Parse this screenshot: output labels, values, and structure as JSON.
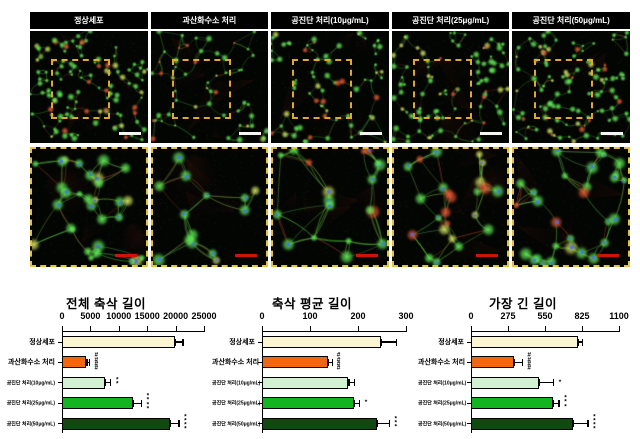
{
  "micrographs": {
    "panels": [
      {
        "label": "정상세포",
        "density": 1.0
      },
      {
        "label": "과산화수소 처리",
        "density": 0.48
      },
      {
        "label": "공진단 처리(10μg/mL)",
        "density": 0.62
      },
      {
        "label": "공진단 처리(25μg/mL)",
        "density": 0.8
      },
      {
        "label": "공진단 처리(50μg/mL)",
        "density": 0.95
      }
    ],
    "overview_scalebar_color": "#FFFFFF",
    "inset_scalebar_color": "#CC1505",
    "inset_box_color": "#E0A82E"
  },
  "chart_data": [
    {
      "type": "bar",
      "orientation": "horizontal",
      "title": "전체 축삭 길이",
      "categories": [
        "정상세포",
        "과산화수소 처리",
        "공진단 처리(10μg/mL)",
        "공진단 처리(25μg/mL)",
        "공진단 처리(50μg/mL)"
      ],
      "values": [
        19900,
        4300,
        7500,
        12500,
        19000
      ],
      "errors": [
        1300,
        500,
        1000,
        1400,
        1500
      ],
      "annotations": [
        "",
        "####",
        "**",
        "****",
        "****"
      ],
      "xlim": [
        0,
        25000
      ],
      "xticks": [
        0,
        5000,
        10000,
        15000,
        20000,
        25000
      ],
      "bar_colors": [
        "#FBF5D2",
        "#F2660F",
        "#D2F0D2",
        "#12B41F",
        "#114A11"
      ],
      "grid": false,
      "legend": false
    },
    {
      "type": "bar",
      "orientation": "horizontal",
      "title": "축삭 평균 길이",
      "categories": [
        "정상세포",
        "과산화수소 처리",
        "공진단 처리(10μg/mL)",
        "공진단 처리(25μg/mL)",
        "공진단 처리(50μg/mL)"
      ],
      "values": [
        247,
        137,
        180,
        192,
        239
      ],
      "errors": [
        32,
        8,
        12,
        10,
        25
      ],
      "annotations": [
        "",
        "####",
        "",
        "*",
        "***"
      ],
      "xlim": [
        0,
        300
      ],
      "xticks": [
        0,
        100,
        200,
        300
      ],
      "bar_colors": [
        "#FBF5D2",
        "#F2660F",
        "#D2F0D2",
        "#12B41F",
        "#114A11"
      ],
      "grid": false,
      "legend": false
    },
    {
      "type": "bar",
      "orientation": "horizontal",
      "title": "가장 긴 길이",
      "categories": [
        "정상세포",
        "과산화수소 처리",
        "공진단 처리(10μg/mL)",
        "공진단 처리(25μg/mL)",
        "공진단 처리(50μg/mL)"
      ],
      "values": [
        795,
        320,
        505,
        610,
        758
      ],
      "errors": [
        30,
        60,
        105,
        40,
        107
      ],
      "annotations": [
        "",
        "####",
        "*",
        "***",
        "****"
      ],
      "xlim": [
        0,
        1100
      ],
      "xticks": [
        0,
        275,
        550,
        825,
        1100
      ],
      "bar_colors": [
        "#FBF5D2",
        "#F2660F",
        "#D2F0D2",
        "#12B41F",
        "#114A11"
      ],
      "grid": false,
      "legend": false
    }
  ]
}
